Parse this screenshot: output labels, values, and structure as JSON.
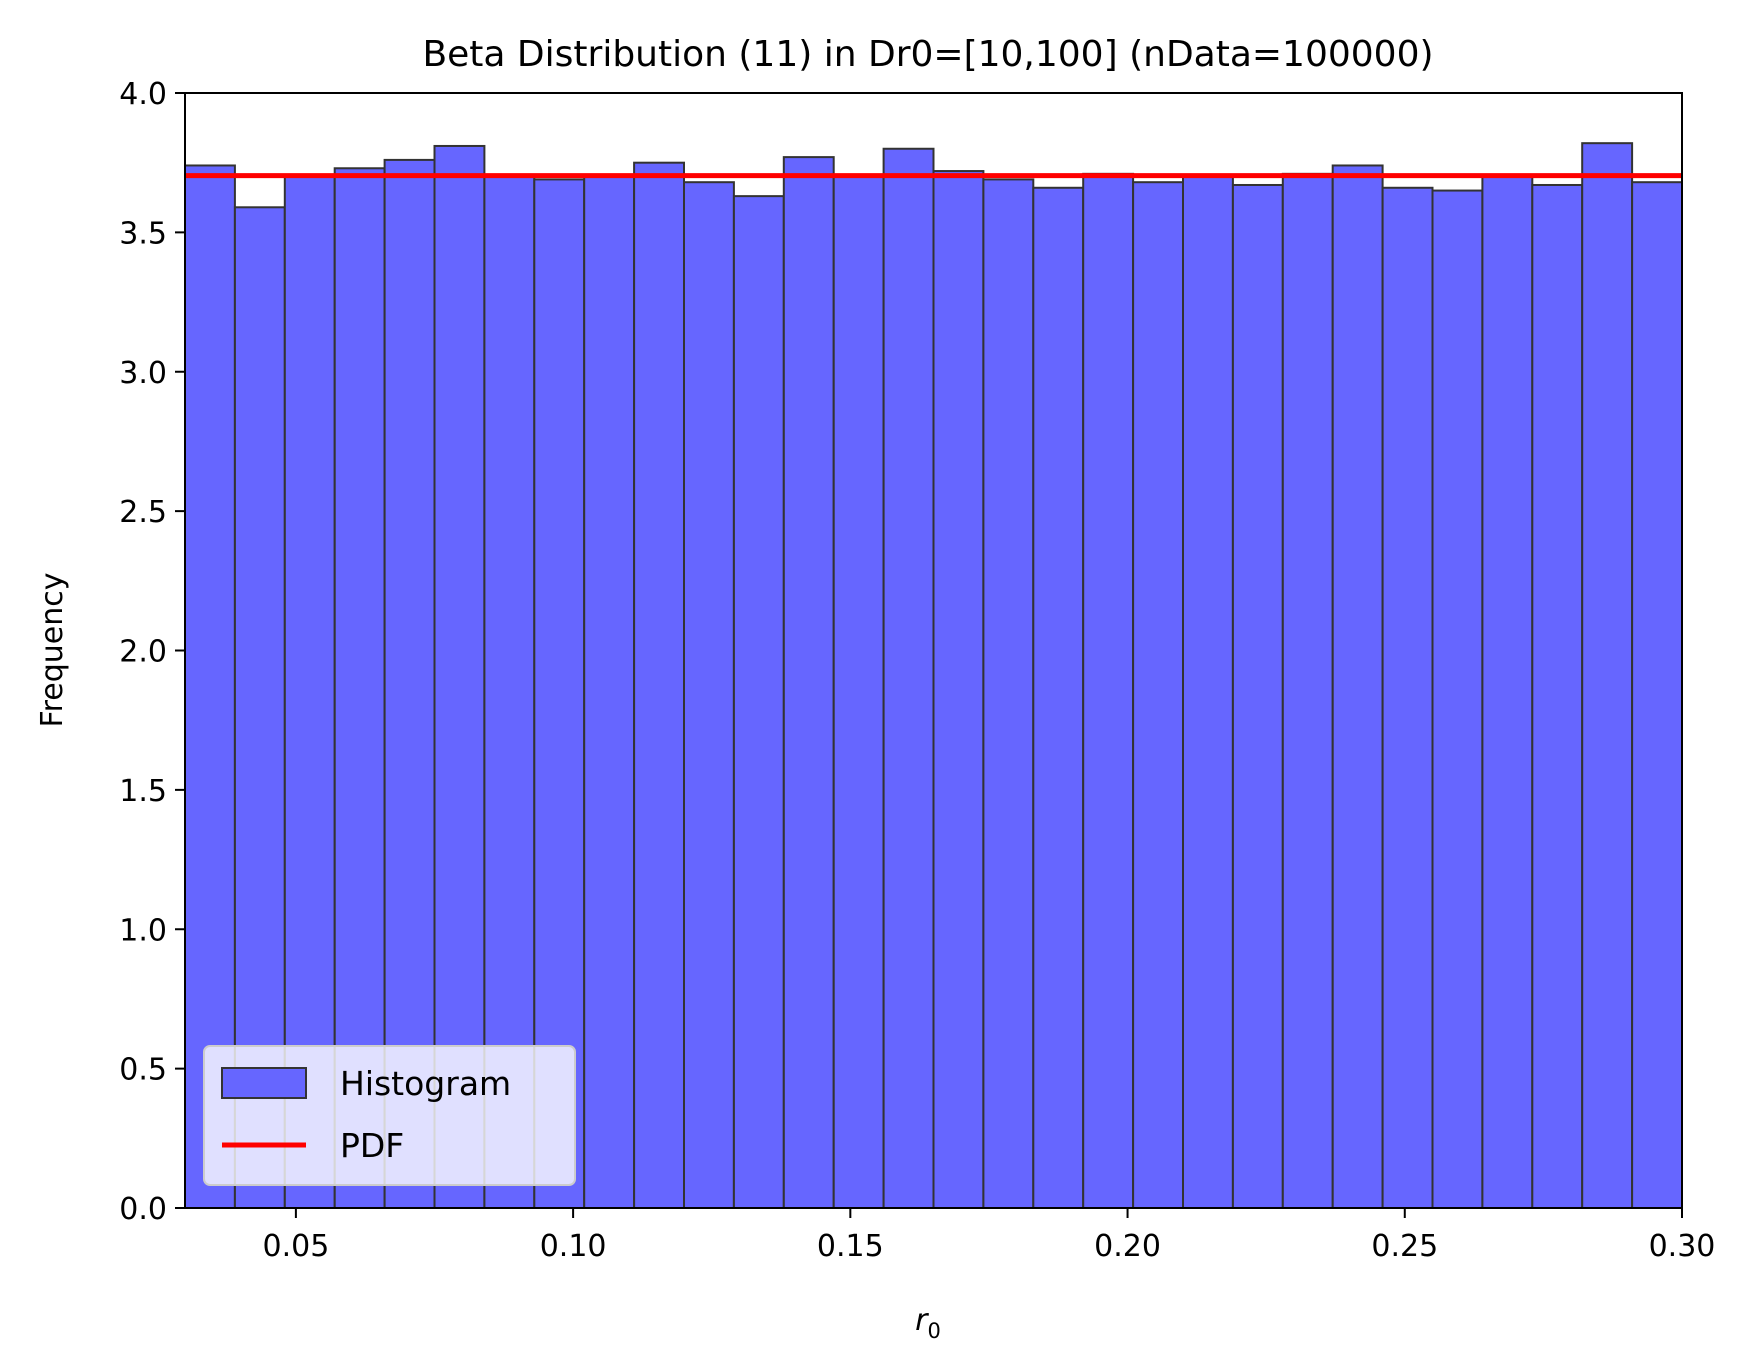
{
  "chart_data": {
    "type": "bar",
    "title": "Beta Distribution (11) in Dr0=[10,100] (nData=100000)",
    "xlabel_main": "r",
    "xlabel_sub": "0",
    "ylabel": "Frequency",
    "xlim": [
      0.03,
      0.3
    ],
    "ylim": [
      0.0,
      4.0
    ],
    "xticks": [
      0.05,
      0.1,
      0.15,
      0.2,
      0.25,
      0.3
    ],
    "xtick_labels": [
      "0.05",
      "0.10",
      "0.15",
      "0.20",
      "0.25",
      "0.30"
    ],
    "yticks": [
      0.0,
      0.5,
      1.0,
      1.5,
      2.0,
      2.5,
      3.0,
      3.5,
      4.0
    ],
    "ytick_labels": [
      "0.0",
      "0.5",
      "1.0",
      "1.5",
      "2.0",
      "2.5",
      "3.0",
      "3.5",
      "4.0"
    ],
    "bin_edges": [
      0.03,
      0.039,
      0.048,
      0.057,
      0.066,
      0.075,
      0.084,
      0.093,
      0.102,
      0.111,
      0.12,
      0.129,
      0.138,
      0.147,
      0.156,
      0.165,
      0.174,
      0.183,
      0.192,
      0.201,
      0.21,
      0.219,
      0.228,
      0.237,
      0.246,
      0.255,
      0.264,
      0.273,
      0.282,
      0.291,
      0.3
    ],
    "series": [
      {
        "name": "Histogram",
        "kind": "histogram",
        "color": "#6666ff",
        "edge_color": "#333333",
        "values": [
          3.74,
          3.59,
          3.7,
          3.73,
          3.76,
          3.81,
          3.7,
          3.69,
          3.7,
          3.75,
          3.68,
          3.63,
          3.77,
          3.7,
          3.8,
          3.72,
          3.69,
          3.66,
          3.71,
          3.68,
          3.7,
          3.67,
          3.71,
          3.74,
          3.66,
          3.65,
          3.7,
          3.67,
          3.82,
          3.68
        ]
      },
      {
        "name": "PDF",
        "kind": "line",
        "color": "#ff0000",
        "x": [
          0.03,
          0.3
        ],
        "y": [
          3.7037,
          3.7037
        ]
      }
    ],
    "legend": {
      "position": "lower-left",
      "entries": [
        "Histogram",
        "PDF"
      ]
    },
    "grid": false
  }
}
